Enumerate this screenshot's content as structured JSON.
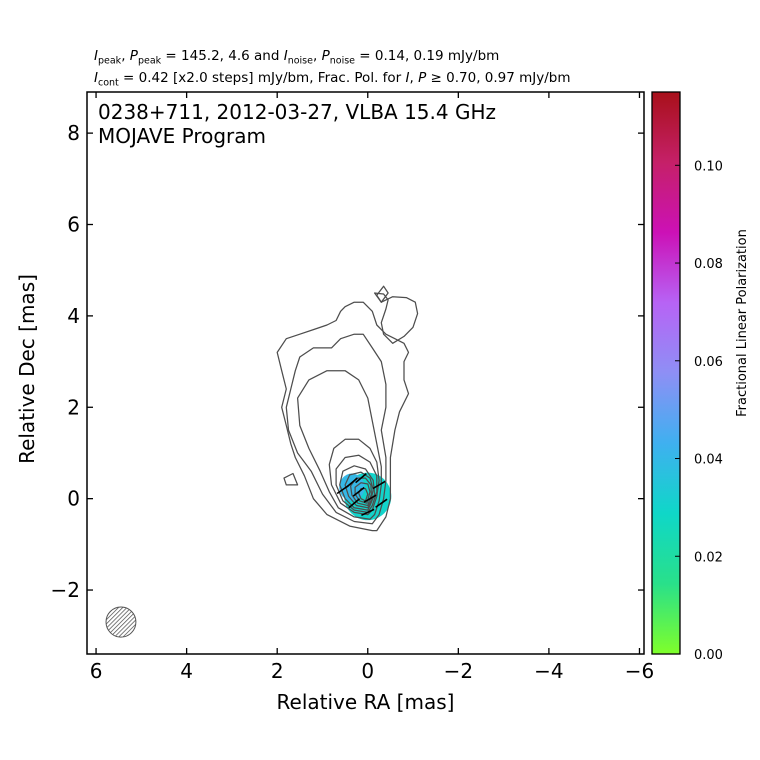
{
  "header": {
    "line1": {
      "ipeak_sym": "I",
      "ipeak_sub": "peak",
      "ppeak_sym": "P",
      "ppeak_sub": "peak",
      "peak_values": " = 145.2, 4.6 and ",
      "inoise_sym": "I",
      "inoise_sub": "noise",
      "pnoise_sym": "P",
      "pnoise_sub": "noise",
      "noise_values": " = 0.14, 0.19 mJy/bm"
    },
    "line2": {
      "icont_sym": "I",
      "icont_sub": "cont",
      "cont_text": " = 0.42 [x2.0 steps] mJy/bm, Frac. Pol. for ",
      "i_sym": "I",
      "p_sym": "P",
      "thresh_text": " ≥ 0.70, 0.97 mJy/bm"
    }
  },
  "chart_data": {
    "type": "contour",
    "title_lines": [
      "0238+711, 2012-03-27, VLBA 15.4 GHz",
      "MOJAVE Program"
    ],
    "xlabel": "Relative RA [mas]",
    "ylabel": "Relative Dec [mas]",
    "xlim": [
      6.2,
      -6.1
    ],
    "ylim": [
      -3.4,
      8.9
    ],
    "xticks": [
      6,
      4,
      2,
      0,
      -2,
      -4,
      -6
    ],
    "xtick_labels": [
      "6",
      "4",
      "2",
      "0",
      "−2",
      "−4",
      "−6"
    ],
    "yticks": [
      -2,
      0,
      2,
      4,
      6,
      8
    ],
    "ytick_labels": [
      "−2",
      "0",
      "2",
      "4",
      "6",
      "8"
    ],
    "x_inverted": true,
    "colorbar": {
      "label": "Fractional Linear Polarization",
      "range": [
        0.0,
        0.115
      ],
      "ticks": [
        0.0,
        0.02,
        0.04,
        0.06,
        0.08,
        0.1
      ],
      "tick_labels": [
        "0.00",
        "0.02",
        "0.04",
        "0.06",
        "0.08",
        "0.10"
      ],
      "colormap_stops": [
        "#7fff2a",
        "#29e08a",
        "#0fd7c8",
        "#3fb0f0",
        "#8e8ff5",
        "#b763f5",
        "#cc11b6",
        "#c52068",
        "#a8101a"
      ]
    },
    "contour_color": "#4d4d4d",
    "contours": [
      [
        [
          -0.1,
          -0.7
        ],
        [
          0.4,
          -0.6
        ],
        [
          0.9,
          -0.35
        ],
        [
          1.2,
          0.0
        ],
        [
          1.4,
          0.5
        ],
        [
          1.6,
          0.9
        ],
        [
          1.7,
          1.2
        ],
        [
          1.8,
          1.6
        ],
        [
          1.9,
          2.0
        ],
        [
          1.8,
          2.4
        ],
        [
          1.9,
          2.8
        ],
        [
          2.0,
          3.2
        ],
        [
          1.8,
          3.5
        ],
        [
          1.5,
          3.6
        ],
        [
          1.2,
          3.7
        ],
        [
          0.9,
          3.8
        ],
        [
          0.7,
          3.9
        ],
        [
          0.6,
          4.1
        ],
        [
          0.5,
          4.2
        ],
        [
          0.3,
          4.3
        ],
        [
          0.1,
          4.3
        ],
        [
          -0.1,
          4.1
        ],
        [
          -0.2,
          3.8
        ],
        [
          -0.4,
          3.6
        ],
        [
          -0.6,
          3.5
        ],
        [
          -0.8,
          3.4
        ],
        [
          -0.9,
          3.2
        ],
        [
          -0.8,
          3.0
        ],
        [
          -0.8,
          2.6
        ],
        [
          -0.9,
          2.3
        ],
        [
          -0.7,
          1.9
        ],
        [
          -0.6,
          1.5
        ],
        [
          -0.5,
          0.9
        ],
        [
          -0.5,
          0.4
        ],
        [
          -0.5,
          0.0
        ],
        [
          -0.4,
          -0.4
        ],
        [
          -0.2,
          -0.7
        ],
        [
          -0.1,
          -0.7
        ]
      ],
      [
        [
          -0.1,
          -0.55
        ],
        [
          0.3,
          -0.5
        ],
        [
          0.7,
          -0.3
        ],
        [
          1.0,
          0.1
        ],
        [
          1.25,
          0.6
        ],
        [
          1.55,
          1.0
        ],
        [
          1.75,
          1.5
        ],
        [
          1.8,
          2.0
        ],
        [
          1.7,
          2.4
        ],
        [
          1.6,
          2.8
        ],
        [
          1.5,
          3.1
        ],
        [
          1.2,
          3.3
        ],
        [
          0.8,
          3.3
        ],
        [
          0.6,
          3.5
        ],
        [
          0.3,
          3.6
        ],
        [
          0.1,
          3.6
        ],
        [
          -0.1,
          3.3
        ],
        [
          -0.3,
          3.0
        ],
        [
          -0.4,
          2.5
        ],
        [
          -0.4,
          2.0
        ],
        [
          -0.3,
          1.5
        ],
        [
          -0.4,
          0.9
        ],
        [
          -0.4,
          0.4
        ],
        [
          -0.35,
          0.0
        ],
        [
          -0.25,
          -0.35
        ],
        [
          -0.1,
          -0.55
        ]
      ],
      [
        [
          -0.05,
          -0.45
        ],
        [
          0.3,
          -0.4
        ],
        [
          0.65,
          -0.2
        ],
        [
          0.85,
          0.15
        ],
        [
          1.05,
          0.6
        ],
        [
          1.3,
          1.1
        ],
        [
          1.5,
          1.6
        ],
        [
          1.55,
          2.2
        ],
        [
          1.3,
          2.6
        ],
        [
          0.9,
          2.8
        ],
        [
          0.5,
          2.8
        ],
        [
          0.2,
          2.6
        ],
        [
          0.0,
          2.2
        ],
        [
          -0.1,
          1.7
        ],
        [
          -0.2,
          1.2
        ],
        [
          -0.3,
          0.7
        ],
        [
          -0.3,
          0.3
        ],
        [
          -0.25,
          -0.05
        ],
        [
          -0.15,
          -0.35
        ],
        [
          -0.05,
          -0.45
        ]
      ],
      [
        [
          0.0,
          -0.35
        ],
        [
          0.3,
          -0.3
        ],
        [
          0.6,
          -0.1
        ],
        [
          0.8,
          0.3
        ],
        [
          0.85,
          0.75
        ],
        [
          0.75,
          1.1
        ],
        [
          0.5,
          1.3
        ],
        [
          0.2,
          1.3
        ],
        [
          -0.05,
          1.1
        ],
        [
          -0.2,
          0.8
        ],
        [
          -0.25,
          0.4
        ],
        [
          -0.2,
          0.05
        ],
        [
          -0.1,
          -0.25
        ],
        [
          0.0,
          -0.35
        ]
      ],
      [
        [
          0.0,
          -0.3
        ],
        [
          0.3,
          -0.25
        ],
        [
          0.55,
          -0.05
        ],
        [
          0.7,
          0.3
        ],
        [
          0.7,
          0.65
        ],
        [
          0.5,
          0.9
        ],
        [
          0.2,
          0.95
        ],
        [
          -0.05,
          0.8
        ],
        [
          -0.2,
          0.5
        ],
        [
          -0.2,
          0.15
        ],
        [
          -0.1,
          -0.15
        ],
        [
          0.0,
          -0.3
        ]
      ],
      [
        [
          0.0,
          -0.25
        ],
        [
          0.3,
          -0.2
        ],
        [
          0.5,
          0.0
        ],
        [
          0.62,
          0.3
        ],
        [
          0.55,
          0.6
        ],
        [
          0.3,
          0.72
        ],
        [
          0.05,
          0.65
        ],
        [
          -0.12,
          0.4
        ],
        [
          -0.15,
          0.1
        ],
        [
          -0.05,
          -0.15
        ],
        [
          0.0,
          -0.25
        ]
      ],
      [
        [
          0.0,
          -0.2
        ],
        [
          0.25,
          -0.15
        ],
        [
          0.42,
          0.05
        ],
        [
          0.5,
          0.3
        ],
        [
          0.4,
          0.52
        ],
        [
          0.15,
          0.58
        ],
        [
          -0.05,
          0.45
        ],
        [
          -0.12,
          0.2
        ],
        [
          -0.07,
          -0.05
        ],
        [
          0.0,
          -0.2
        ]
      ],
      [
        [
          0.0,
          -0.15
        ],
        [
          0.22,
          -0.1
        ],
        [
          0.35,
          0.08
        ],
        [
          0.38,
          0.28
        ],
        [
          0.25,
          0.45
        ],
        [
          0.05,
          0.45
        ],
        [
          -0.07,
          0.3
        ],
        [
          -0.08,
          0.1
        ],
        [
          0.0,
          -0.15
        ]
      ],
      [
        [
          0.02,
          -0.1
        ],
        [
          0.18,
          -0.05
        ],
        [
          0.28,
          0.1
        ],
        [
          0.28,
          0.25
        ],
        [
          0.15,
          0.35
        ],
        [
          0.0,
          0.32
        ],
        [
          -0.05,
          0.15
        ],
        [
          0.02,
          -0.1
        ]
      ],
      [
        [
          0.05,
          -0.05
        ],
        [
          0.15,
          0.0
        ],
        [
          0.2,
          0.12
        ],
        [
          0.15,
          0.22
        ],
        [
          0.05,
          0.22
        ],
        [
          0.0,
          0.1
        ],
        [
          0.05,
          -0.05
        ]
      ],
      [
        [
          -0.15,
          4.5
        ],
        [
          -0.35,
          4.48
        ],
        [
          -0.45,
          4.35
        ],
        [
          -0.4,
          4.15
        ],
        [
          -0.3,
          3.85
        ],
        [
          -0.35,
          3.6
        ],
        [
          -0.55,
          3.4
        ],
        [
          -0.8,
          3.55
        ],
        [
          -1.0,
          3.75
        ],
        [
          -1.1,
          4.05
        ],
        [
          -1.05,
          4.3
        ],
        [
          -0.85,
          4.4
        ],
        [
          -0.55,
          4.42
        ],
        [
          -0.3,
          4.3
        ],
        [
          -0.15,
          4.5
        ]
      ],
      [
        [
          -0.2,
          4.45
        ],
        [
          -0.35,
          4.65
        ],
        [
          -0.45,
          4.5
        ],
        [
          -0.3,
          4.3
        ],
        [
          -0.2,
          4.45
        ]
      ],
      [
        [
          1.55,
          0.3
        ],
        [
          1.8,
          0.3
        ],
        [
          1.85,
          0.45
        ],
        [
          1.65,
          0.55
        ],
        [
          1.55,
          0.3
        ]
      ]
    ],
    "polarization_regions": [
      {
        "center": [
          0.0,
          0.05
        ],
        "radii": [
          0.52,
          0.52
        ],
        "fraction": 0.03
      },
      {
        "center": [
          0.35,
          0.25
        ],
        "radii": [
          0.28,
          0.3
        ],
        "fraction": 0.04
      }
    ],
    "evpa_ticks": [
      {
        "pos": [
          0.55,
          0.2
        ],
        "angle": -35
      },
      {
        "pos": [
          0.35,
          0.35
        ],
        "angle": -40
      },
      {
        "pos": [
          0.2,
          0.15
        ],
        "angle": -38
      },
      {
        "pos": [
          0.15,
          0.45
        ],
        "angle": -40
      },
      {
        "pos": [
          -0.05,
          0.0
        ],
        "angle": -30
      },
      {
        "pos": [
          -0.25,
          0.3
        ],
        "angle": -30
      },
      {
        "pos": [
          0.0,
          -0.3
        ],
        "angle": -25
      },
      {
        "pos": [
          -0.3,
          -0.1
        ],
        "angle": -35
      },
      {
        "pos": [
          0.3,
          -0.1
        ],
        "angle": -40
      }
    ],
    "beam": {
      "center": [
        5.45,
        -2.7
      ],
      "major": 0.66,
      "minor": 0.66,
      "pa": 0
    }
  }
}
